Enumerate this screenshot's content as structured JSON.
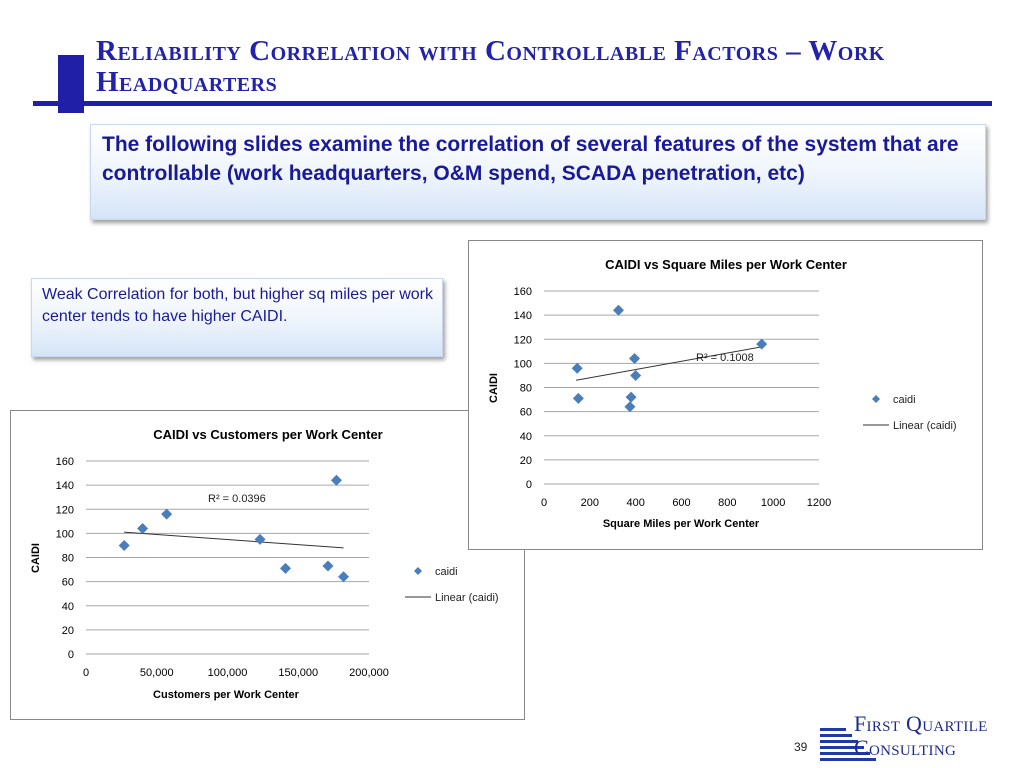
{
  "slide": {
    "title": "Reliability Correlation with Controllable Factors – Work Headquarters",
    "intro": "The following slides examine the correlation of several features of the system that are controllable (work headquarters, O&M spend, SCADA penetration, etc)",
    "note": "Weak Correlation for both, but higher sq miles per work center tends to have higher CAIDI.",
    "page_number": "39",
    "logo": {
      "line1": "First Quartile",
      "line2": "Consulting"
    },
    "colors": {
      "title": "#2222aa",
      "accent": "#1f1fa8",
      "marker": "#4a7ebb"
    }
  },
  "chart_data": [
    {
      "type": "scatter",
      "title": "CAIDI vs Square Miles per Work Center",
      "xlabel": "Square Miles per Work Center",
      "ylabel": "CAIDI",
      "xlim": [
        0,
        1200
      ],
      "ylim": [
        0,
        160
      ],
      "xticks": [
        0,
        200,
        400,
        600,
        800,
        1000,
        1200
      ],
      "xtick_labels": [
        "0",
        "200",
        "400",
        "600",
        "800",
        "1000",
        "1200"
      ],
      "yticks": [
        0,
        20,
        40,
        60,
        80,
        100,
        120,
        140,
        160
      ],
      "ytick_labels": [
        "0",
        "20",
        "40",
        "60",
        "80",
        "100",
        "120",
        "140",
        "160"
      ],
      "grid": "horizontal",
      "legend_position": "right",
      "series": [
        {
          "name": "caidi",
          "x": [
            145,
            150,
            325,
            375,
            380,
            395,
            400,
            950
          ],
          "y": [
            96,
            71,
            144,
            64,
            72,
            104,
            90,
            116
          ]
        }
      ],
      "trendline": {
        "name": "Linear (caidi)",
        "x": [
          140,
          960
        ],
        "y": [
          86,
          114
        ]
      },
      "annotation": "R² = 0.1008"
    },
    {
      "type": "scatter",
      "title": "CAIDI vs Customers per Work Center",
      "xlabel": "Customers per Work Center",
      "ylabel": "CAIDI",
      "xlim": [
        0,
        200000
      ],
      "ylim": [
        0,
        160
      ],
      "xticks": [
        0,
        50000,
        100000,
        150000,
        200000
      ],
      "xtick_labels": [
        "0",
        "50,000",
        "100,000",
        "150,000",
        "200,000"
      ],
      "yticks": [
        0,
        20,
        40,
        60,
        80,
        100,
        120,
        140,
        160
      ],
      "ytick_labels": [
        "0",
        "20",
        "40",
        "60",
        "80",
        "100",
        "120",
        "140",
        "160"
      ],
      "grid": "horizontal",
      "legend_position": "right",
      "series": [
        {
          "name": "caidi",
          "x": [
            27000,
            40000,
            57000,
            123000,
            141000,
            171000,
            177000,
            182000
          ],
          "y": [
            90,
            104,
            116,
            95,
            71,
            73,
            144,
            64
          ]
        }
      ],
      "trendline": {
        "name": "Linear (caidi)",
        "x": [
          27000,
          182000
        ],
        "y": [
          101,
          88
        ]
      },
      "annotation": "R² = 0.0396"
    }
  ]
}
